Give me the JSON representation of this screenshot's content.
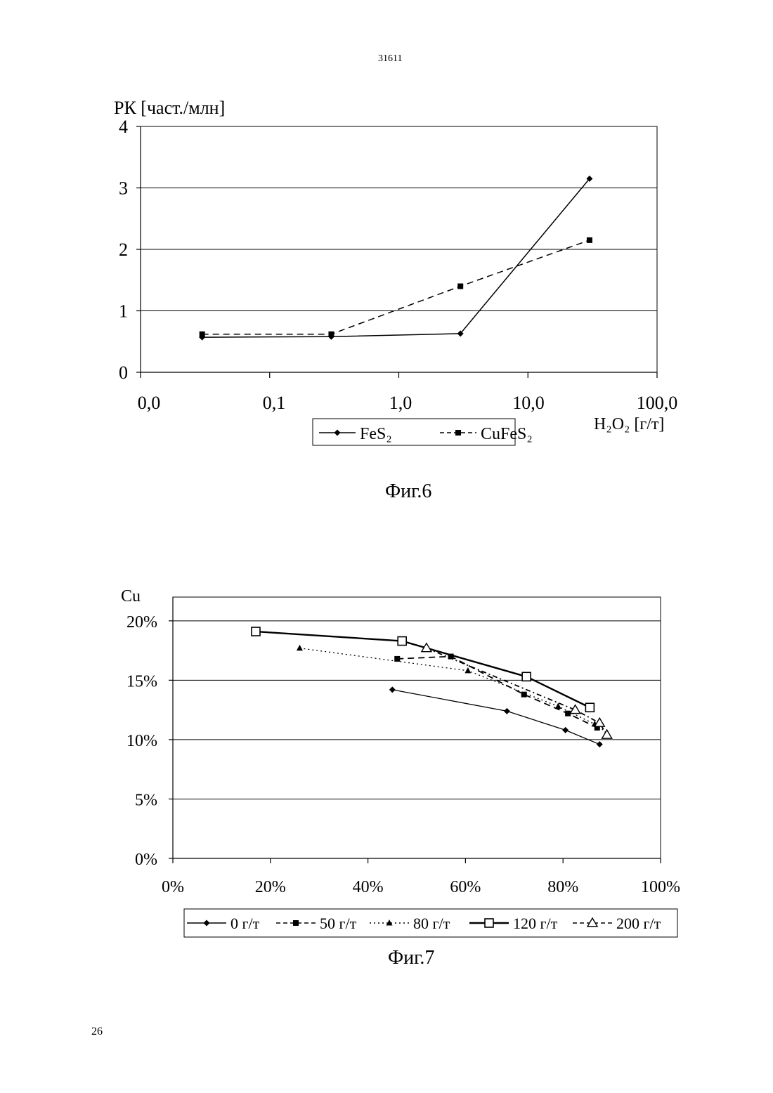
{
  "page": {
    "header_number": "31611",
    "footer_number": "26"
  },
  "figure6": {
    "caption": "Фиг.6",
    "chart_data": {
      "type": "line",
      "title": "",
      "ylabel": "РК [част./млн]",
      "xlabel": "H₂O₂ [г/т]",
      "x_scale": "log",
      "x_tick_labels": [
        "0,0",
        "0,1",
        "1,0",
        "10,0",
        "100,0"
      ],
      "y_tick_labels": [
        "0",
        "1",
        "2",
        "3",
        "4"
      ],
      "ylim": [
        0,
        4
      ],
      "grid": "horizontal",
      "legend_position": "bottom",
      "series": [
        {
          "name": "FeS₂",
          "line": "solid",
          "marker": "diamond",
          "x": [
            0.03,
            0.3,
            3.0,
            30.0
          ],
          "y": [
            0.57,
            0.58,
            0.63,
            3.15
          ]
        },
        {
          "name": "CuFeS₂",
          "line": "dashed",
          "marker": "square",
          "x": [
            0.03,
            0.3,
            3.0,
            30.0
          ],
          "y": [
            0.62,
            0.62,
            1.4,
            2.15
          ]
        }
      ]
    }
  },
  "figure7": {
    "caption": "Фиг.7",
    "chart_data": {
      "type": "line",
      "title": "",
      "ylabel": "Cu",
      "xlabel": "",
      "x_tick_labels": [
        "0%",
        "20%",
        "40%",
        "60%",
        "80%",
        "100%"
      ],
      "y_tick_labels": [
        "0%",
        "5%",
        "10%",
        "15%",
        "20%"
      ],
      "xlim": [
        0,
        100
      ],
      "ylim": [
        0,
        22
      ],
      "grid": "horizontal",
      "legend_position": "bottom",
      "series": [
        {
          "name": "0 г/т",
          "line": "solid",
          "marker": "diamond",
          "x": [
            45,
            68.5,
            80.5,
            87.5
          ],
          "y": [
            14.2,
            12.4,
            10.8,
            9.6
          ]
        },
        {
          "name": "50 г/т",
          "line": "dashed",
          "marker": "square",
          "x": [
            46,
            57,
            72,
            81,
            87
          ],
          "y": [
            16.8,
            17.0,
            13.8,
            12.2,
            11.0
          ]
        },
        {
          "name": "80 г/т",
          "line": "dotted",
          "marker": "triangle",
          "x": [
            26,
            60.5,
            79,
            86.5,
            89
          ],
          "y": [
            17.7,
            15.8,
            12.8,
            11.3,
            10.6
          ]
        },
        {
          "name": "120 г/т",
          "line": "solid-thick",
          "marker": "open-square",
          "x": [
            17,
            47,
            72.5,
            85.5
          ],
          "y": [
            19.1,
            18.3,
            15.3,
            12.7
          ]
        },
        {
          "name": "200 г/т",
          "line": "dash-dot",
          "marker": "open-triangle",
          "x": [
            52,
            82.5,
            87.5,
            89
          ],
          "y": [
            17.7,
            12.5,
            11.4,
            10.4
          ]
        }
      ]
    }
  }
}
